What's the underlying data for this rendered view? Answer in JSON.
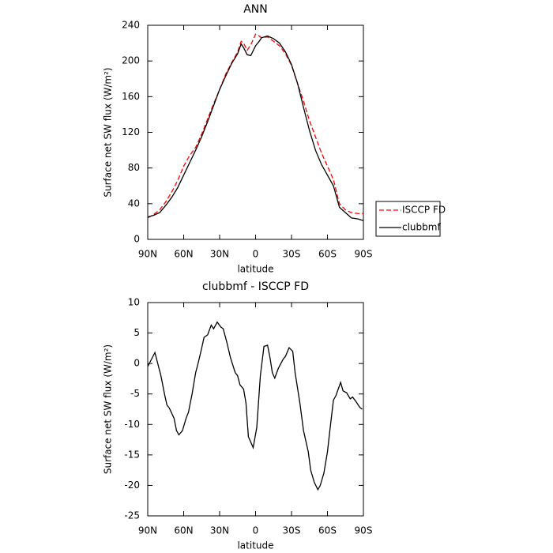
{
  "chart_data": [
    {
      "type": "line",
      "title": "ANN",
      "xlabel": "latitude",
      "ylabel": "Surface net SW flux (W/m²)",
      "x": [
        90,
        85,
        80,
        75,
        70,
        65,
        60,
        55,
        50,
        45,
        40,
        35,
        30,
        25,
        20,
        15,
        12,
        10,
        7,
        4,
        0,
        -3,
        -5,
        -10,
        -15,
        -20,
        -25,
        -30,
        -35,
        -40,
        -45,
        -50,
        -55,
        -60,
        -65,
        -70,
        -75,
        -80,
        -85,
        -90
      ],
      "series": [
        {
          "name": "ISCCP FD",
          "color": "#ff0000",
          "style": "dashed",
          "values": [
            24,
            28,
            33,
            42,
            53,
            66,
            82,
            94,
            103,
            118,
            135,
            152,
            168,
            185,
            198,
            210,
            222,
            220,
            212,
            218,
            230,
            228,
            226,
            227,
            222,
            217,
            208,
            195,
            175,
            155,
            133,
            115,
            97,
            82,
            67,
            40,
            33,
            30,
            29,
            29
          ]
        },
        {
          "name": "clubbmf",
          "color": "#000000",
          "style": "solid",
          "values": [
            25,
            27,
            30,
            38,
            47,
            58,
            72,
            86,
            100,
            115,
            132,
            150,
            168,
            183,
            197,
            208,
            219,
            215,
            207,
            206,
            217,
            222,
            226,
            228,
            225,
            220,
            210,
            196,
            175,
            148,
            122,
            100,
            84,
            72,
            60,
            36,
            30,
            24,
            23,
            21
          ]
        }
      ],
      "xlim": [
        90,
        -90
      ],
      "xticks": [
        {
          "value": 90,
          "label": "90N"
        },
        {
          "value": 60,
          "label": "60N"
        },
        {
          "value": 30,
          "label": "30N"
        },
        0,
        {
          "value": -30,
          "label": "30S"
        },
        {
          "value": -60,
          "label": "60S"
        },
        {
          "value": -90,
          "label": "90S"
        }
      ],
      "ylim": [
        0,
        240
      ],
      "yticks": [
        0,
        40,
        80,
        120,
        160,
        200,
        240
      ],
      "legend": "right"
    },
    {
      "type": "line",
      "title": "clubbmf - ISCCP FD",
      "xlabel": "latitude",
      "ylabel": "Surface net SW flux (W/m²)",
      "x": [
        90,
        84,
        79,
        76,
        74,
        72,
        68,
        66,
        64,
        61,
        58,
        56,
        53,
        50,
        48,
        45,
        43,
        40,
        37,
        35,
        32,
        29,
        27,
        24,
        21,
        17,
        15,
        13,
        10,
        8,
        6,
        2,
        -1,
        -4,
        -7,
        -10,
        -12,
        -14,
        -16,
        -19,
        -23,
        -25,
        -28,
        -31,
        -33,
        -37,
        -40,
        -44,
        -46,
        -49,
        -52,
        -54,
        -57,
        -60,
        -62,
        -65,
        -67,
        -71,
        -73,
        -76,
        -79,
        -81,
        -84,
        -87,
        -89
      ],
      "color": "#000000",
      "values": [
        -0.5,
        1.8,
        -2,
        -5,
        -6.8,
        -7.3,
        -9,
        -11,
        -11.7,
        -11,
        -9,
        -8,
        -5,
        -1.5,
        0,
        2.5,
        4.3,
        4.7,
        6.3,
        5.7,
        6.8,
        6,
        5.7,
        3.5,
        1,
        -1.5,
        -2,
        -3.5,
        -4.2,
        -6.5,
        -12,
        -13.8,
        -10.5,
        -2,
        2.8,
        3,
        1,
        -1.5,
        -2.4,
        -0.8,
        0.7,
        1.2,
        2.6,
        2,
        -1.5,
        -6.5,
        -11,
        -14.5,
        -17.5,
        -19.5,
        -20.7,
        -20,
        -18,
        -14.5,
        -11,
        -6,
        -5.3,
        -3.1,
        -4.5,
        -4.8,
        -5.8,
        -5.5,
        -6.3,
        -7.2,
        -7.5
      ],
      "xlim": [
        90,
        -90
      ],
      "xticks": [
        {
          "value": 90,
          "label": "90N"
        },
        {
          "value": 60,
          "label": "60N"
        },
        {
          "value": 30,
          "label": "30N"
        },
        0,
        {
          "value": -30,
          "label": "30S"
        },
        {
          "value": -60,
          "label": "60S"
        },
        {
          "value": -90,
          "label": "90S"
        }
      ],
      "ylim": [
        -25,
        10
      ],
      "yticks": [
        -25,
        -20,
        -15,
        -10,
        -5,
        0,
        5,
        10
      ]
    }
  ]
}
